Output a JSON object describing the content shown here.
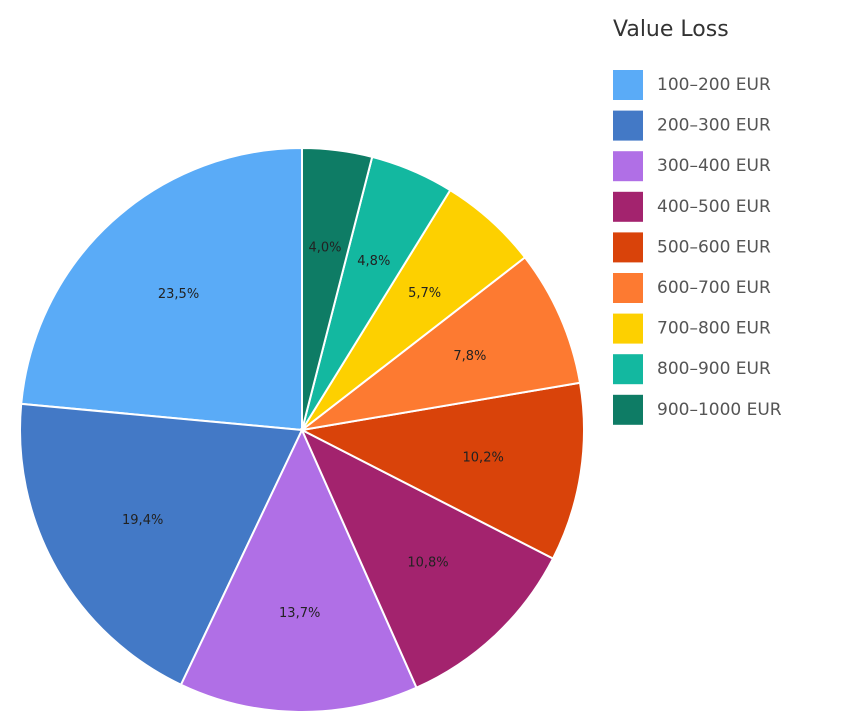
{
  "chart_data": {
    "type": "pie",
    "legend_title": "Value Loss",
    "categories": [
      "100–200 EUR",
      "200–300 EUR",
      "300–400 EUR",
      "400–500 EUR",
      "500–600 EUR",
      "600–700 EUR",
      "700–800 EUR",
      "800–900 EUR",
      "900–1000 EUR"
    ],
    "values": [
      23.5,
      19.4,
      13.7,
      10.8,
      10.2,
      7.8,
      5.7,
      4.8,
      4.0
    ],
    "value_labels": [
      "23,5%",
      "19,4%",
      "13,7%",
      "10,8%",
      "10,2%",
      "7,8%",
      "5,7%",
      "4,8%",
      "4,0%"
    ],
    "colors": [
      "#5aabf7",
      "#4379c6",
      "#b06fe6",
      "#a3236e",
      "#d9430a",
      "#fd7a31",
      "#fdd000",
      "#13b8a0",
      "#0e7c65"
    ],
    "direction": "counterclockwise",
    "legend": "right"
  }
}
